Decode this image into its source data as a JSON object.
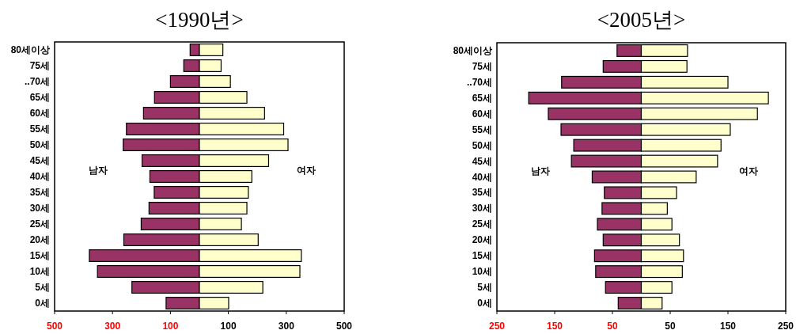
{
  "chart_data": [
    {
      "type": "bar",
      "orientation": "horizontal",
      "stacked": true,
      "title": "<1990년>",
      "categories": [
        "80세이상",
        "75세",
        "..70세",
        "65세",
        "60세",
        "55세",
        "50세",
        "45세",
        "40세",
        "35세",
        "30세",
        "25세",
        "20세",
        "15세",
        "10세",
        "5세",
        "0세"
      ],
      "series": [
        {
          "name": "남자",
          "color": "#993366",
          "values": [
            -32,
            -54,
            -100,
            -155,
            -193,
            -252,
            -263,
            -198,
            -171,
            -156,
            -174,
            -201,
            -261,
            -380,
            -352,
            -233,
            -115
          ]
        },
        {
          "name": "여자",
          "color": "#ffffcc",
          "values": [
            81,
            75,
            107,
            164,
            225,
            291,
            306,
            239,
            181,
            169,
            164,
            145,
            203,
            352,
            347,
            219,
            101
          ]
        }
      ],
      "xlim": [
        -500,
        500
      ],
      "xticks": [
        {
          "value": -500,
          "label": "500"
        },
        {
          "value": -300,
          "label": "300"
        },
        {
          "value": -100,
          "label": "100"
        },
        100,
        300,
        500
      ],
      "grid": false,
      "legend": false
    },
    {
      "type": "bar",
      "orientation": "horizontal",
      "stacked": true,
      "title": "<2005년>",
      "categories": [
        "80세이상",
        "75세",
        "..70세",
        "65세",
        "60세",
        "55세",
        "50세",
        "45세",
        "40세",
        "35세",
        "30세",
        "25세",
        "20세",
        "15세",
        "10세",
        "5세",
        "0세"
      ],
      "series": [
        {
          "name": "남자",
          "color": "#993366",
          "values": [
            -42,
            -66,
            -138,
            -195,
            -161,
            -139,
            -117,
            -121,
            -85,
            -64,
            -68,
            -76,
            -66,
            -81,
            -79,
            -62,
            -40
          ]
        },
        {
          "name": "여자",
          "color": "#ffffcc",
          "values": [
            80,
            79,
            150,
            220,
            201,
            154,
            138,
            132,
            95,
            61,
            45,
            53,
            66,
            73,
            71,
            53,
            36
          ]
        }
      ],
      "xlim": [
        -250,
        250
      ],
      "xticks": [
        {
          "value": -250,
          "label": "250"
        },
        {
          "value": -150,
          "label": "150"
        },
        {
          "value": -50,
          "label": "50"
        },
        50,
        150,
        250
      ],
      "grid": false,
      "legend": false
    }
  ]
}
